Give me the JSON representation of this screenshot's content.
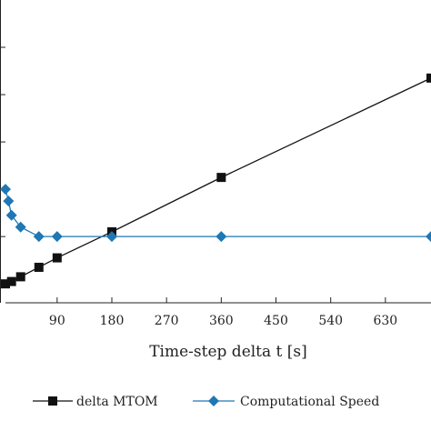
{
  "chart_data": {
    "type": "line",
    "xlabel": "Time-step delta t [s]",
    "xlim": [
      8,
      705
    ],
    "ylim": [
      -0.08,
      1.2
    ],
    "x_ticks": [
      90,
      180,
      270,
      360,
      450,
      540,
      630
    ],
    "y_ticks": [
      0,
      0.2,
      0.4,
      0.6,
      0.8,
      1.0
    ],
    "grid": false,
    "legend_position": "bottom",
    "series": [
      {
        "name": "delta MTOM",
        "color": "#111111",
        "marker": "square",
        "x": [
          5,
          15,
          30,
          60,
          90,
          180,
          360,
          705
        ],
        "y": [
          0.0,
          0.01,
          0.03,
          0.07,
          0.11,
          0.22,
          0.45,
          0.87
        ]
      },
      {
        "name": "Computational Speed",
        "color": "#1f77b4",
        "marker": "diamond",
        "x": [
          5,
          10,
          15,
          30,
          60,
          90,
          180,
          360,
          705
        ],
        "y": [
          0.4,
          0.35,
          0.29,
          0.24,
          0.2,
          0.2,
          0.2,
          0.2,
          0.2
        ]
      }
    ]
  }
}
